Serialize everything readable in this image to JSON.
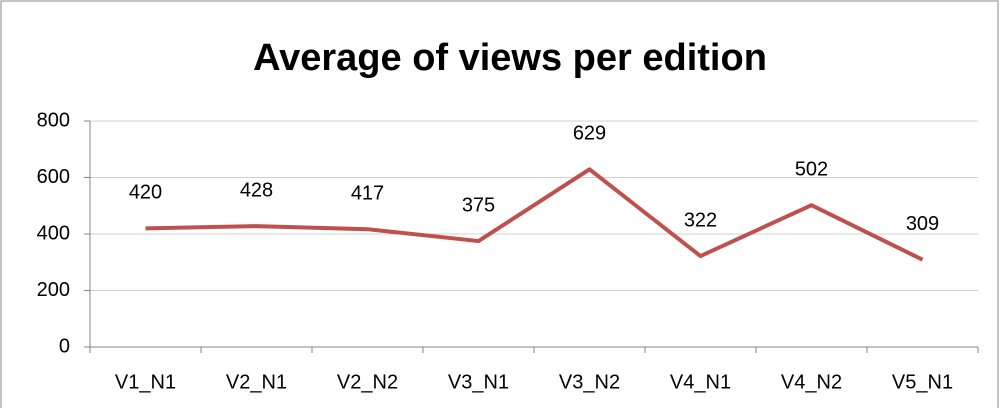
{
  "chart_data": {
    "type": "line",
    "title": "Average of views per edition",
    "categories": [
      "V1_N1",
      "V2_N1",
      "V2_N2",
      "V3_N1",
      "V3_N2",
      "V4_N1",
      "V4_N2",
      "V5_N1"
    ],
    "values": [
      420,
      428,
      417,
      375,
      629,
      322,
      502,
      309
    ],
    "color": "#c0504d",
    "ylim": [
      0,
      800
    ],
    "yticks": [
      0,
      200,
      400,
      600,
      800
    ],
    "grid": true
  }
}
